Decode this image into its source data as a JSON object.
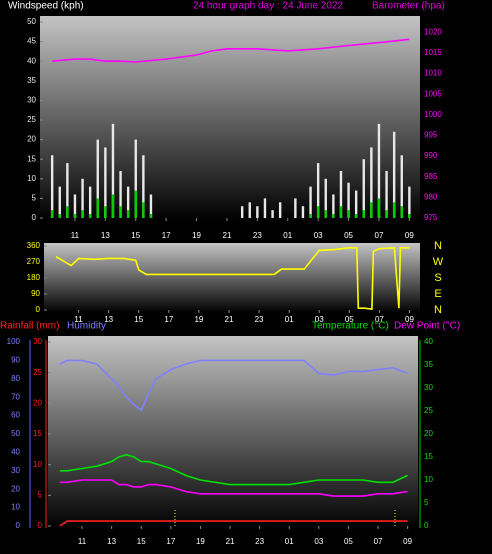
{
  "chart_data": [
    {
      "type": "combo",
      "title": "24 hour graph day : 24 June 2022",
      "ylabel": "Windspeed (kph)",
      "y2label": "Barometer (hpa)",
      "xlim": [
        8.7,
        33.7
      ],
      "xticks": [
        11,
        13,
        15,
        17,
        19,
        21,
        23,
        {
          "value": 25,
          "label": "01"
        },
        {
          "value": 27,
          "label": "03"
        },
        {
          "value": 29,
          "label": "05"
        },
        {
          "value": 31,
          "label": "07"
        },
        {
          "value": 33,
          "label": "09"
        }
      ],
      "ylim": [
        0,
        50
      ],
      "yticks": [
        0,
        5,
        10,
        15,
        20,
        25,
        30,
        35,
        40,
        45,
        50
      ],
      "y2lim": [
        975,
        1022.5
      ],
      "y2ticks": [
        975,
        980,
        985,
        990,
        995,
        1000,
        1005,
        1010,
        1015,
        1020
      ],
      "x": [
        9.5,
        10,
        10.5,
        11,
        11.5,
        12,
        12.5,
        13,
        13.5,
        14,
        14.5,
        15,
        15.5,
        16,
        16.5,
        17,
        17.5,
        18,
        18.5,
        19,
        19.5,
        20,
        20.5,
        21,
        21.5,
        22,
        22.5,
        23,
        23.5,
        24,
        24.5,
        25,
        25.5,
        26,
        26.5,
        27,
        27.5,
        28,
        28.5,
        29,
        29.5,
        30,
        30.5,
        31,
        31.5,
        32,
        32.5,
        33
      ],
      "series": [
        {
          "type": "bar",
          "color": "#e8e8e8",
          "values": [
            16,
            8,
            14,
            6,
            10,
            8,
            20,
            18,
            24,
            12,
            8,
            20,
            16,
            6,
            0,
            0,
            0,
            0,
            0,
            0,
            0,
            0,
            0,
            0,
            0,
            3,
            4,
            3,
            5,
            2,
            4,
            0,
            5,
            3,
            8,
            14,
            10,
            6,
            12,
            9,
            7,
            15,
            18,
            24,
            12,
            22,
            16,
            8
          ]
        },
        {
          "type": "bar",
          "color": "#00d000",
          "values": [
            2,
            1,
            3,
            1,
            2,
            1,
            5,
            3,
            6,
            3,
            2,
            7,
            4,
            1,
            0,
            0,
            0,
            0,
            0,
            0,
            0,
            0,
            0,
            0,
            0,
            0,
            0,
            0,
            0,
            0,
            0,
            0,
            0,
            0,
            1,
            3,
            2,
            1,
            3,
            2,
            1,
            2,
            4,
            5,
            2,
            4,
            3,
            1
          ]
        },
        {
          "type": "line",
          "axis": "y2",
          "color": "#ff00ff",
          "x": [
            9.5,
            11,
            12,
            13,
            14,
            15,
            17,
            19,
            20,
            21,
            23,
            25,
            27,
            29,
            31,
            33
          ],
          "values": [
            1013,
            1013.5,
            1013.5,
            1013,
            1013,
            1012.8,
            1013.5,
            1014.5,
            1015.5,
            1016,
            1016,
            1015.5,
            1016,
            1016.8,
            1017.5,
            1018.3
          ]
        }
      ]
    },
    {
      "type": "line",
      "xlim": [
        8.7,
        33.7
      ],
      "xticks": [
        11,
        13,
        15,
        17,
        19,
        21,
        23,
        {
          "value": 25,
          "label": "01"
        },
        {
          "value": 27,
          "label": "03"
        },
        {
          "value": 29,
          "label": "05"
        },
        {
          "value": 31,
          "label": "07"
        },
        {
          "value": 33,
          "label": "09"
        }
      ],
      "ylim": [
        0,
        360
      ],
      "yticks": [
        0,
        90,
        180,
        270,
        360
      ],
      "y2lim": [
        0,
        360
      ],
      "y2ticks": [
        {
          "value": 360,
          "label": "N"
        },
        {
          "value": 270,
          "label": "W"
        },
        {
          "value": 180,
          "label": "S"
        },
        {
          "value": 90,
          "label": "E"
        },
        {
          "value": 0,
          "label": "N"
        }
      ],
      "x": [
        9.5,
        10,
        10.5,
        11,
        12,
        13,
        14,
        14.8,
        15,
        15.5,
        16,
        21,
        24,
        24.5,
        26,
        27,
        28,
        29,
        29.5,
        29.6,
        30,
        30.5,
        30.6,
        31,
        32,
        32.3,
        32.4,
        33
      ],
      "series": [
        {
          "color": "#ffff00",
          "values": [
            300,
            275,
            250,
            290,
            285,
            290,
            290,
            280,
            225,
            200,
            200,
            200,
            200,
            230,
            230,
            335,
            340,
            350,
            350,
            10,
            10,
            5,
            330,
            345,
            350,
            10,
            350,
            350
          ]
        }
      ]
    },
    {
      "type": "line",
      "xlim": [
        8.7,
        33.7
      ],
      "xticks": [
        11,
        13,
        15,
        17,
        19,
        21,
        23,
        {
          "value": 25,
          "label": "01"
        },
        {
          "value": 27,
          "label": "03"
        },
        {
          "value": 29,
          "label": "05"
        },
        {
          "value": 31,
          "label": "07"
        },
        {
          "value": 33,
          "label": "09"
        }
      ],
      "ylim": [
        0,
        30
      ],
      "yticks": [
        0,
        5,
        10,
        15,
        20,
        25,
        30
      ],
      "hlim": [
        0,
        100
      ],
      "hticks": [
        0,
        10,
        20,
        30,
        40,
        50,
        60,
        70,
        80,
        90,
        100
      ],
      "y2lim": [
        0,
        40
      ],
      "y2ticks": [
        0,
        5,
        10,
        15,
        20,
        25,
        30,
        35,
        40
      ],
      "x": [
        9.5,
        10,
        11,
        12,
        13,
        13.5,
        14,
        14.5,
        15,
        15.5,
        16,
        17,
        18,
        19,
        21,
        23,
        25,
        26,
        27,
        28,
        29,
        30,
        31,
        32,
        33
      ],
      "series": [
        {
          "name": "Rainfall (mm)",
          "color": "#ff2020",
          "values": [
            0,
            0.8,
            0.8,
            0.8,
            0.8,
            0.8,
            0.8,
            0.8,
            0.8,
            0.8,
            0.8,
            0.8,
            0.8,
            0.8,
            0.8,
            0.8,
            0.8,
            0.8,
            0.8,
            0.8,
            0.8,
            0.8,
            0.8,
            0.8,
            0.8
          ]
        },
        {
          "name": "Humidity",
          "axis": "h",
          "color": "#8080ff",
          "values": [
            88,
            90,
            90,
            88,
            80,
            76,
            70,
            66,
            63,
            72,
            80,
            85,
            88,
            90,
            90,
            90,
            90,
            90,
            83,
            82,
            84,
            84,
            85,
            86,
            83
          ]
        },
        {
          "name": "Temperature (°C)",
          "axis": "y2",
          "color": "#00e000",
          "values": [
            12,
            12,
            12.5,
            13,
            14,
            15,
            15.5,
            15,
            14,
            14,
            13.5,
            12.5,
            11,
            10,
            9,
            9,
            9,
            9.5,
            10,
            10,
            10,
            10,
            9.5,
            9.5,
            11
          ]
        },
        {
          "name": "Dew Point (°C)",
          "axis": "y2",
          "color": "#ff00ff",
          "values": [
            9.5,
            9.5,
            10,
            10,
            10,
            9,
            9,
            8.5,
            8.5,
            9,
            9,
            8.5,
            7.5,
            7,
            7,
            7,
            7,
            7,
            7,
            6.5,
            6.5,
            6.5,
            7,
            7,
            7.5
          ]
        }
      ]
    }
  ]
}
